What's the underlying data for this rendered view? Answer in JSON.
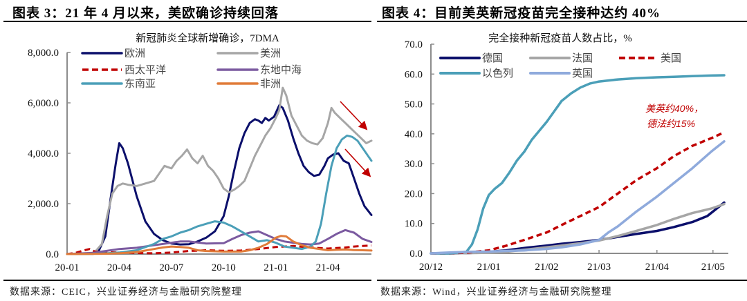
{
  "left": {
    "panel_title": "图表 3：21 年 4 月以来，美欧确诊持续回落",
    "source": "数据来源：CEIC，兴业证券经济与金融研究院整理"
  },
  "right": {
    "panel_title": "图表 4：目前美英新冠疫苗完全接种达约 40%",
    "source": "数据来源：Wind，兴业证券经济与金融研究院整理"
  },
  "chart_data": [
    {
      "type": "line",
      "title": "新冠肺炎全球新增确诊，7DMA",
      "xlabel": "",
      "ylabel": "",
      "ylim": [
        0,
        8000
      ],
      "yticks": [
        "0.0",
        "2,000.0",
        "4,000.0",
        "6,000.0",
        "8,000.0"
      ],
      "ytick_values": [
        0,
        2000,
        4000,
        6000,
        8000
      ],
      "xlim_months": [
        0,
        17.5
      ],
      "xticks": [
        "20-01",
        "20-04",
        "20-07",
        "20-10",
        "21-01",
        "21-04"
      ],
      "xtick_months": [
        0,
        3,
        6,
        9,
        12,
        15
      ],
      "legend_position": "top",
      "annotations": [
        "down-arrow (美洲)",
        "down-arrow (欧洲)"
      ],
      "x_unit": "months since 2020-01",
      "series": [
        {
          "name": "欧洲",
          "color": "#0b0f6b",
          "dash": false,
          "x": [
            0,
            1.2,
            1.8,
            2.2,
            2.5,
            2.8,
            3.0,
            3.2,
            3.5,
            4.0,
            4.5,
            5.0,
            5.5,
            6.0,
            6.5,
            7.0,
            7.5,
            8.0,
            8.5,
            9.0,
            9.3,
            9.6,
            9.9,
            10.2,
            10.5,
            10.8,
            11.0,
            11.2,
            11.4,
            11.6,
            11.9,
            12.2,
            12.4,
            12.7,
            13.0,
            13.3,
            13.6,
            13.9,
            14.2,
            14.5,
            14.8,
            15.0,
            15.3,
            15.6,
            15.9,
            16.2,
            16.5,
            16.8,
            17.1,
            17.5
          ],
          "y": [
            0,
            0,
            100,
            700,
            2200,
            3600,
            4400,
            4200,
            3600,
            2300,
            1300,
            800,
            550,
            420,
            380,
            390,
            500,
            650,
            900,
            1500,
            2300,
            3300,
            4200,
            4800,
            5200,
            5350,
            5300,
            5200,
            5400,
            5300,
            5450,
            5900,
            5800,
            5300,
            4600,
            4000,
            3500,
            3250,
            3100,
            3150,
            3500,
            3800,
            3950,
            4000,
            3700,
            3600,
            3000,
            2400,
            1900,
            1550
          ]
        },
        {
          "name": "美洲",
          "color": "#a6a6a6",
          "dash": false,
          "x": [
            0,
            1.5,
            2.0,
            2.3,
            2.6,
            2.9,
            3.2,
            3.5,
            4.0,
            4.5,
            5.0,
            5.3,
            5.6,
            6.0,
            6.3,
            6.6,
            6.9,
            7.2,
            7.5,
            7.8,
            8.1,
            8.4,
            8.7,
            9.0,
            9.3,
            9.6,
            9.9,
            10.2,
            10.5,
            10.8,
            11.1,
            11.4,
            11.7,
            12.0,
            12.2,
            12.4,
            12.6,
            12.9,
            13.2,
            13.5,
            13.8,
            14.1,
            14.4,
            14.7,
            15.0,
            15.2,
            15.4,
            15.7,
            16.0,
            16.3,
            16.6,
            16.9,
            17.2,
            17.5
          ],
          "y": [
            0,
            0,
            400,
            1500,
            2400,
            2700,
            2800,
            2750,
            2700,
            2800,
            2900,
            3200,
            3500,
            3400,
            3700,
            3900,
            4150,
            3800,
            3600,
            3900,
            3500,
            3300,
            3000,
            2600,
            2450,
            2550,
            2700,
            2900,
            3400,
            3900,
            4300,
            4700,
            5000,
            5400,
            5700,
            6600,
            6300,
            5500,
            5100,
            4700,
            4500,
            4400,
            4350,
            4600,
            5200,
            5800,
            5600,
            5400,
            5200,
            5000,
            4800,
            4600,
            4400,
            4500
          ]
        },
        {
          "name": "西太平洋",
          "color": "#c00000",
          "dash": true,
          "x": [
            0,
            0.5,
            1.0,
            1.3,
            1.6,
            2.0,
            3.0,
            4.0,
            5.0,
            6.0,
            7.0,
            8.0,
            9.0,
            10.0,
            11.0,
            12.0,
            13.0,
            14.0,
            15.0,
            16.0,
            16.5,
            17.0,
            17.5
          ],
          "y": [
            0,
            50,
            150,
            200,
            100,
            80,
            60,
            40,
            30,
            60,
            120,
            150,
            130,
            140,
            200,
            280,
            320,
            260,
            220,
            260,
            300,
            320,
            340
          ]
        },
        {
          "name": "东地中海",
          "color": "#7b5aa0",
          "dash": false,
          "x": [
            0,
            1.5,
            2.0,
            3.0,
            4.0,
            5.0,
            6.0,
            6.5,
            7.0,
            8.0,
            9.0,
            9.5,
            10.0,
            10.5,
            11.0,
            11.5,
            12.0,
            12.5,
            13.0,
            13.5,
            14.0,
            14.5,
            15.0,
            15.5,
            16.0,
            16.5,
            17.0,
            17.5
          ],
          "y": [
            0,
            50,
            100,
            200,
            250,
            350,
            450,
            500,
            500,
            420,
            430,
            600,
            750,
            850,
            900,
            750,
            600,
            500,
            450,
            400,
            380,
            420,
            600,
            800,
            950,
            850,
            600,
            480
          ]
        },
        {
          "name": "东南亚",
          "color": "#4b9fb8",
          "dash": false,
          "x": [
            0,
            2.0,
            3.0,
            4.0,
            5.0,
            5.5,
            6.0,
            6.5,
            7.0,
            7.5,
            8.0,
            8.5,
            9.0,
            9.5,
            10.0,
            10.5,
            11.0,
            11.5,
            12.0,
            12.5,
            13.0,
            13.5,
            14.0,
            14.3,
            14.6,
            14.9,
            15.2,
            15.5,
            15.8,
            16.1,
            16.4,
            16.7,
            17.0,
            17.3,
            17.5
          ],
          "y": [
            0,
            20,
            60,
            150,
            400,
            600,
            700,
            850,
            950,
            1100,
            1200,
            1300,
            1250,
            1100,
            900,
            700,
            500,
            550,
            450,
            300,
            250,
            200,
            300,
            500,
            1200,
            2400,
            3500,
            4200,
            4550,
            4700,
            4650,
            4500,
            4200,
            3900,
            3700
          ]
        },
        {
          "name": "非洲",
          "color": "#e07b39",
          "dash": false,
          "x": [
            0,
            2.0,
            3.0,
            4.0,
            5.0,
            5.5,
            6.0,
            6.5,
            7.0,
            7.5,
            8.0,
            9.0,
            10.0,
            10.5,
            11.0,
            11.5,
            12.0,
            12.3,
            12.6,
            13.0,
            13.5,
            14.0,
            14.5,
            15.0,
            15.5,
            16.0,
            16.5,
            17.0,
            17.5
          ],
          "y": [
            0,
            10,
            30,
            80,
            200,
            260,
            300,
            280,
            250,
            150,
            120,
            100,
            100,
            150,
            250,
            400,
            650,
            720,
            700,
            500,
            350,
            250,
            200,
            150,
            170,
            180,
            160,
            150,
            140
          ]
        }
      ]
    },
    {
      "type": "line",
      "title": "完全接种新冠疫苗人数占比，%",
      "xlabel": "",
      "ylabel": "",
      "ylim": [
        0,
        70
      ],
      "yticks": [
        "0.0",
        "10.0",
        "20.0",
        "30.0",
        "40.0",
        "50.0",
        "60.0",
        "70.0"
      ],
      "ytick_values": [
        0,
        10,
        20,
        30,
        40,
        50,
        60,
        70
      ],
      "xlim_days": [
        0,
        157
      ],
      "xticks": [
        "20/12",
        "21/01",
        "21/02",
        "21/03",
        "21/04",
        "21/05"
      ],
      "xtick_days": [
        0,
        31,
        62,
        90,
        121,
        151
      ],
      "x_unit": "days since 2020-12-01",
      "legend_position": "top-left",
      "annotation": "美英约40%，\n德法约15%",
      "series": [
        {
          "name": "德国",
          "color": "#0b0f6b",
          "dash": false,
          "x": [
            0,
            10,
            20,
            31,
            40,
            50,
            62,
            70,
            80,
            90,
            100,
            110,
            121,
            130,
            140,
            148,
            152,
            157
          ],
          "y": [
            0,
            0,
            0.1,
            0.5,
            1.0,
            1.8,
            2.6,
            3.2,
            3.8,
            4.5,
            5.5,
            6.5,
            7.5,
            8.8,
            10.5,
            12.5,
            14.5,
            17.0
          ]
        },
        {
          "name": "法国",
          "color": "#a6a6a6",
          "dash": false,
          "x": [
            0,
            10,
            20,
            31,
            40,
            50,
            62,
            70,
            80,
            90,
            100,
            110,
            121,
            130,
            140,
            150,
            157
          ],
          "y": [
            0,
            0,
            0.1,
            0.2,
            0.5,
            1.2,
            2.0,
            2.6,
            3.4,
            4.3,
            5.8,
            7.5,
            9.5,
            11.5,
            13.5,
            15.0,
            16.5
          ]
        },
        {
          "name": "美国",
          "color": "#c00000",
          "dash": true,
          "x": [
            0,
            10,
            20,
            31,
            40,
            50,
            62,
            70,
            80,
            90,
            100,
            110,
            121,
            130,
            140,
            150,
            157
          ],
          "y": [
            0,
            0,
            0.3,
            1.0,
            2.5,
            4.5,
            7.0,
            9.5,
            12.5,
            15.5,
            20.0,
            24.5,
            28.5,
            32.5,
            36.0,
            38.5,
            40.5
          ]
        },
        {
          "name": "以色列",
          "color": "#4b9fb8",
          "dash": false,
          "x": [
            0,
            10,
            19,
            22,
            25,
            28,
            31,
            34,
            38,
            42,
            46,
            50,
            54,
            58,
            62,
            66,
            70,
            75,
            80,
            85,
            90,
            100,
            110,
            121,
            130,
            140,
            150,
            157
          ],
          "y": [
            0,
            0,
            0.5,
            3,
            8,
            15,
            19.5,
            21.5,
            23.5,
            27,
            31,
            34,
            38,
            41,
            44,
            47.5,
            51,
            53.5,
            55.5,
            56.8,
            57.5,
            58.2,
            58.6,
            58.9,
            59.1,
            59.3,
            59.5,
            59.6
          ]
        },
        {
          "name": "英国",
          "color": "#8faadc",
          "dash": false,
          "x": [
            0,
            10,
            20,
            31,
            40,
            50,
            62,
            70,
            80,
            90,
            95,
            100,
            110,
            121,
            130,
            140,
            150,
            157
          ],
          "y": [
            0,
            0.3,
            0.5,
            0.6,
            0.8,
            1.0,
            1.5,
            2.0,
            3.0,
            4.5,
            7.0,
            9.0,
            14.0,
            19.0,
            23.5,
            28.5,
            34.0,
            37.5
          ]
        }
      ]
    }
  ]
}
